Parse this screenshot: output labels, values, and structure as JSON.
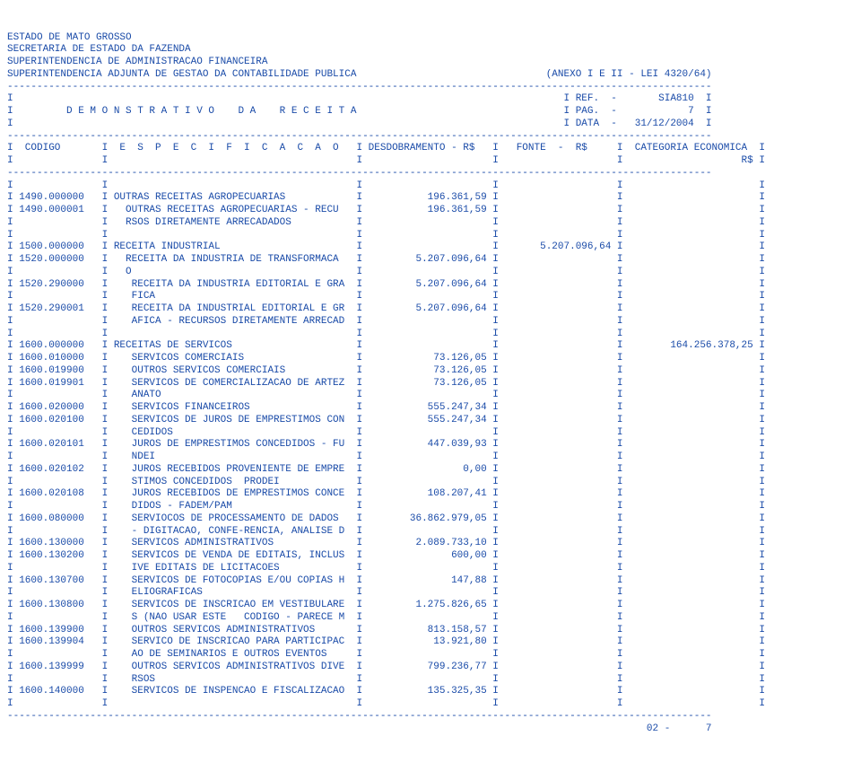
{
  "header": {
    "line1": "ESTADO DE MATO GROSSO",
    "line2": "SECRETARIA DE ESTADO DA FAZENDA",
    "line3": "SUPERINTENDENCIA DE ADMINISTRACAO FINANCEIRA",
    "line4_left": "SUPERINTENDENCIA ADJUNTA DE GESTAO DA CONTABILIDADE PUBLICA",
    "line4_right": "(ANEXO I E II - LEI 4320/64)"
  },
  "meta": {
    "ref": "REF.  -       SIA810",
    "title": "D E M O N S T R A T I V O    D A    R E C E I T A",
    "pag": "PAG.  -            7",
    "data": "DATA  -   31/12/2004"
  },
  "columns": {
    "codigo": "CODIGO",
    "especificacao": "E  S  P  E  C  I  F  I  C  A  C  A  O",
    "desdobramento": "DESDOBRAMENTO - R$",
    "fonte": "FONTE  -  R$",
    "categoria": "CATEGORIA ECONOMICA",
    "rs": "R$"
  },
  "rows": [
    {
      "codigo": "",
      "desc": "",
      "desd": "",
      "fonte": "",
      "cat": ""
    },
    {
      "codigo": "1490.000000",
      "desc": "OUTRAS RECEITAS AGROPECUARIAS",
      "desd": "196.361,59",
      "fonte": "",
      "cat": ""
    },
    {
      "codigo": "1490.000001",
      "desc": "  OUTRAS RECEITAS AGROPECUARIAS - RECU",
      "desd": "196.361,59",
      "fonte": "",
      "cat": ""
    },
    {
      "codigo": "",
      "desc": "  RSOS DIRETAMENTE ARRECADADOS",
      "desd": "",
      "fonte": "",
      "cat": ""
    },
    {
      "codigo": "",
      "desc": "",
      "desd": "",
      "fonte": "",
      "cat": ""
    },
    {
      "codigo": "1500.000000",
      "desc": "RECEITA INDUSTRIAL",
      "desd": "",
      "fonte": "5.207.096,64",
      "cat": ""
    },
    {
      "codigo": "1520.000000",
      "desc": "  RECEITA DA INDUSTRIA DE TRANSFORMACA",
      "desd": "5.207.096,64",
      "fonte": "",
      "cat": ""
    },
    {
      "codigo": "",
      "desc": "  O",
      "desd": "",
      "fonte": "",
      "cat": ""
    },
    {
      "codigo": "1520.290000",
      "desc": "   RECEITA DA INDUSTRIA EDITORIAL E GRA",
      "desd": "5.207.096,64",
      "fonte": "",
      "cat": ""
    },
    {
      "codigo": "",
      "desc": "   FICA",
      "desd": "",
      "fonte": "",
      "cat": ""
    },
    {
      "codigo": "1520.290001",
      "desc": "   RECEITA DA INDUSTRIAL EDITORIAL E GR",
      "desd": "5.207.096,64",
      "fonte": "",
      "cat": ""
    },
    {
      "codigo": "",
      "desc": "   AFICA - RECURSOS DIRETAMENTE ARRECAD",
      "desd": "",
      "fonte": "",
      "cat": ""
    },
    {
      "codigo": "",
      "desc": "",
      "desd": "",
      "fonte": "",
      "cat": ""
    },
    {
      "codigo": "1600.000000",
      "desc": "RECEITAS DE SERVICOS",
      "desd": "",
      "fonte": "",
      "cat": "164.256.378,25"
    },
    {
      "codigo": "1600.010000",
      "desc": "   SERVICOS COMERCIAIS",
      "desd": "73.126,05",
      "fonte": "",
      "cat": ""
    },
    {
      "codigo": "1600.019900",
      "desc": "   OUTROS SERVICOS COMERCIAIS",
      "desd": "73.126,05",
      "fonte": "",
      "cat": ""
    },
    {
      "codigo": "1600.019901",
      "desc": "   SERVICOS DE COMERCIALIZACAO DE ARTEZ",
      "desd": "73.126,05",
      "fonte": "",
      "cat": ""
    },
    {
      "codigo": "",
      "desc": "   ANATO",
      "desd": "",
      "fonte": "",
      "cat": ""
    },
    {
      "codigo": "1600.020000",
      "desc": "   SERVICOS FINANCEIROS",
      "desd": "555.247,34",
      "fonte": "",
      "cat": ""
    },
    {
      "codigo": "1600.020100",
      "desc": "   SERVICOS DE JUROS DE EMPRESTIMOS CON",
      "desd": "555.247,34",
      "fonte": "",
      "cat": ""
    },
    {
      "codigo": "",
      "desc": "   CEDIDOS",
      "desd": "",
      "fonte": "",
      "cat": ""
    },
    {
      "codigo": "1600.020101",
      "desc": "   JUROS DE EMPRESTIMOS CONCEDIDOS - FU",
      "desd": "447.039,93",
      "fonte": "",
      "cat": ""
    },
    {
      "codigo": "",
      "desc": "   NDEI",
      "desd": "",
      "fonte": "",
      "cat": ""
    },
    {
      "codigo": "1600.020102",
      "desc": "   JUROS RECEBIDOS PROVENIENTE DE EMPRE",
      "desd": "0,00",
      "fonte": "",
      "cat": ""
    },
    {
      "codigo": "",
      "desc": "   STIMOS CONCEDIDOS  PRODEI",
      "desd": "",
      "fonte": "",
      "cat": ""
    },
    {
      "codigo": "1600.020108",
      "desc": "   JUROS RECEBIDOS DE EMPRESTIMOS CONCE",
      "desd": "108.207,41",
      "fonte": "",
      "cat": ""
    },
    {
      "codigo": "",
      "desc": "   DIDOS - FADEM/PAM",
      "desd": "",
      "fonte": "",
      "cat": ""
    },
    {
      "codigo": "1600.080000",
      "desc": "   SERVIOCOS DE PROCESSAMENTO DE DADOS",
      "desd": "36.862.979,05",
      "fonte": "",
      "cat": ""
    },
    {
      "codigo": "",
      "desc": "   - DIGITACAO, CONFE-RENCIA, ANALISE D",
      "desd": "",
      "fonte": "",
      "cat": ""
    },
    {
      "codigo": "1600.130000",
      "desc": "   SERVICOS ADMINISTRATIVOS",
      "desd": "2.089.733,10",
      "fonte": "",
      "cat": ""
    },
    {
      "codigo": "1600.130200",
      "desc": "   SERVICOS DE VENDA DE EDITAIS, INCLUS",
      "desd": "600,00",
      "fonte": "",
      "cat": ""
    },
    {
      "codigo": "",
      "desc": "   IVE EDITAIS DE LICITACOES",
      "desd": "",
      "fonte": "",
      "cat": ""
    },
    {
      "codigo": "1600.130700",
      "desc": "   SERVICOS DE FOTOCOPIAS E/OU COPIAS H",
      "desd": "147,88",
      "fonte": "",
      "cat": ""
    },
    {
      "codigo": "",
      "desc": "   ELIOGRAFICAS",
      "desd": "",
      "fonte": "",
      "cat": ""
    },
    {
      "codigo": "1600.130800",
      "desc": "   SERVICOS DE INSCRICAO EM VESTIBULARE",
      "desd": "1.275.826,65",
      "fonte": "",
      "cat": ""
    },
    {
      "codigo": "",
      "desc": "   S (NAO USAR ESTE   CODIGO - PARECE M",
      "desd": "",
      "fonte": "",
      "cat": ""
    },
    {
      "codigo": "1600.139900",
      "desc": "   OUTROS SERVICOS ADMINISTRATIVOS",
      "desd": "813.158,57",
      "fonte": "",
      "cat": ""
    },
    {
      "codigo": "1600.139904",
      "desc": "   SERVICO DE INSCRICAO PARA PARTICIPAC",
      "desd": "13.921,80",
      "fonte": "",
      "cat": ""
    },
    {
      "codigo": "",
      "desc": "   AO DE SEMINARIOS E OUTROS EVENTOS",
      "desd": "",
      "fonte": "",
      "cat": ""
    },
    {
      "codigo": "1600.139999",
      "desc": "   OUTROS SERVICOS ADMINISTRATIVOS DIVE",
      "desd": "799.236,77",
      "fonte": "",
      "cat": ""
    },
    {
      "codigo": "",
      "desc": "   RSOS",
      "desd": "",
      "fonte": "",
      "cat": ""
    },
    {
      "codigo": "1600.140000",
      "desc": "   SERVICOS DE INSPENCAO E FISCALIZACAO",
      "desd": "135.325,35",
      "fonte": "",
      "cat": ""
    },
    {
      "codigo": "",
      "desc": "",
      "desd": "",
      "fonte": "",
      "cat": ""
    }
  ],
  "footer": "02 -      7",
  "layout": {
    "dash_width": 119,
    "col_codigo_w": 13,
    "col_desc_w": 40,
    "col_desd_w": 20,
    "col_fonte_w": 18,
    "col_cat_w": 21
  },
  "colors": {
    "text": "#1a4ba8",
    "background": "#ffffff"
  }
}
